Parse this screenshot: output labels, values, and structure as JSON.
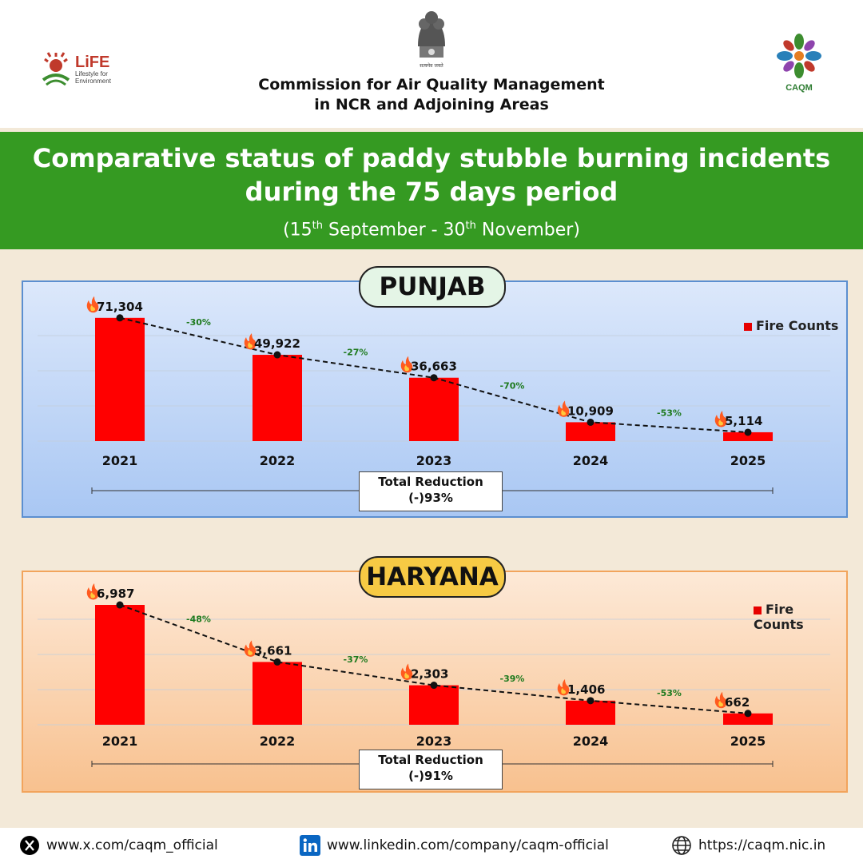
{
  "header": {
    "org_line1": "Commission for Air Quality Management",
    "org_line2": "in NCR and Adjoining Areas",
    "emblem_motto": "सत्यमेव जयते",
    "life_logo_title": "LiFE",
    "life_logo_sub1": "Lifestyle for",
    "life_logo_sub2": "Environment",
    "caqm_logo_text": "CAQM"
  },
  "banner": {
    "title_line1": "Comparative status of paddy stubble burning incidents",
    "title_line2": "during the 75 days period",
    "period_open": "(15",
    "period_sup1": "th",
    "period_mid": " September - 30",
    "period_sup2": "th",
    "period_close": " November)"
  },
  "chart_data": [
    {
      "type": "bar",
      "title": "PUNJAB",
      "categories": [
        "2021",
        "2022",
        "2023",
        "2024",
        "2025"
      ],
      "series": [
        {
          "name": "Fire Counts",
          "values": [
            71304,
            49922,
            36663,
            10909,
            5114
          ]
        }
      ],
      "value_labels": [
        "71,304",
        "49,922",
        "36,663",
        "10,909",
        "5,114"
      ],
      "change_labels": [
        "-30%",
        "-27%",
        "-70%",
        "-53%"
      ],
      "total_reduction_label": "Total Reduction",
      "total_reduction_value": "(-)93%",
      "ylim": [
        0,
        80000
      ],
      "legend": "top-right",
      "grid": true,
      "bar_color": "#ff0000",
      "change_color": "#1e7a1e"
    },
    {
      "type": "bar",
      "title": "HARYANA",
      "categories": [
        "2021",
        "2022",
        "2023",
        "2024",
        "2025"
      ],
      "series": [
        {
          "name": "Fire Counts",
          "values": [
            6987,
            3661,
            2303,
            1406,
            662
          ]
        }
      ],
      "value_labels": [
        "6,987",
        "3,661",
        "2,303",
        "1,406",
        "662"
      ],
      "change_labels": [
        "-48%",
        "-37%",
        "-39%",
        "-53%"
      ],
      "total_reduction_label": "Total Reduction",
      "total_reduction_value": "(-)91%",
      "ylim": [
        0,
        7500
      ],
      "legend": "top-right",
      "grid": true,
      "bar_color": "#ff0000",
      "change_color": "#1e7a1e"
    }
  ],
  "footer": {
    "x_handle": "www.x.com/caqm_official",
    "linkedin": "www.linkedin.com/company/caqm-official",
    "website": "https://caqm.nic.in",
    "x_icon": "x-logo-icon",
    "linkedin_icon": "linkedin-icon",
    "web_icon": "globe-icon"
  }
}
